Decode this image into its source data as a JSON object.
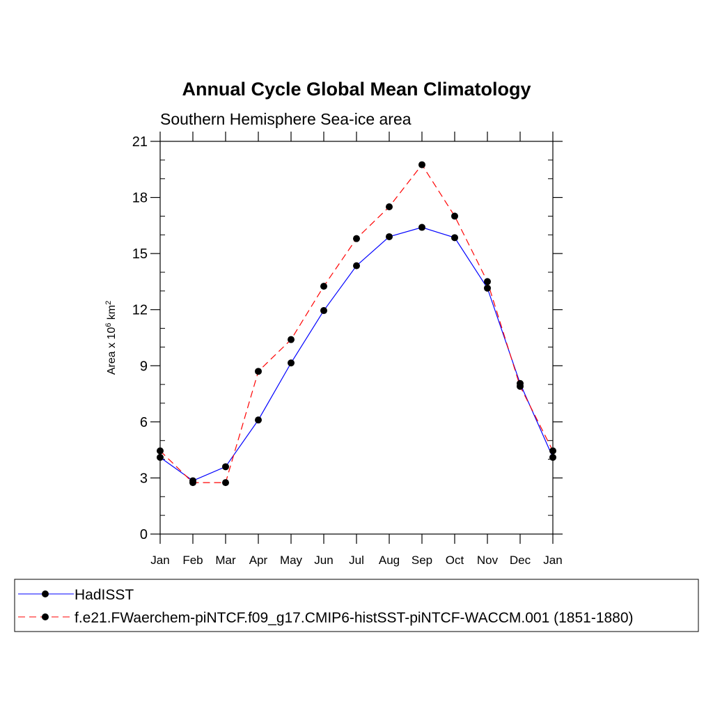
{
  "chart_data": {
    "type": "line",
    "title": "Annual Cycle Global Mean Climatology",
    "subtitle": "Southern Hemisphere Sea-ice area",
    "ylabel": {
      "base": "Area x 10",
      "exp1": "6",
      "unit": " km",
      "exp2": "2"
    },
    "xlabel": "",
    "categories": [
      "Jan",
      "Feb",
      "Mar",
      "Apr",
      "May",
      "Jun",
      "Jul",
      "Aug",
      "Sep",
      "Oct",
      "Nov",
      "Dec",
      "Jan"
    ],
    "yticks": [
      "0",
      "3",
      "6",
      "9",
      "12",
      "15",
      "18",
      "21"
    ],
    "ylim": [
      0,
      21
    ],
    "series": [
      {
        "name": "HadISST",
        "color": "#0000ff",
        "dash": "solid",
        "values": [
          4.1,
          2.85,
          3.6,
          6.1,
          9.15,
          11.95,
          14.35,
          15.9,
          16.4,
          15.85,
          13.15,
          8.05,
          4.1
        ]
      },
      {
        "name": "f.e21.FWaerchem-piNTCF.f09_g17.CMIP6-histSST-piNTCF-WACCM.001 (1851-1880)",
        "color": "#ff0000",
        "dash": "dashed",
        "values": [
          4.45,
          2.75,
          2.75,
          8.7,
          10.4,
          13.25,
          15.8,
          17.5,
          19.75,
          17.0,
          13.5,
          7.9,
          4.45
        ]
      }
    ],
    "legend_position": "bottom"
  }
}
